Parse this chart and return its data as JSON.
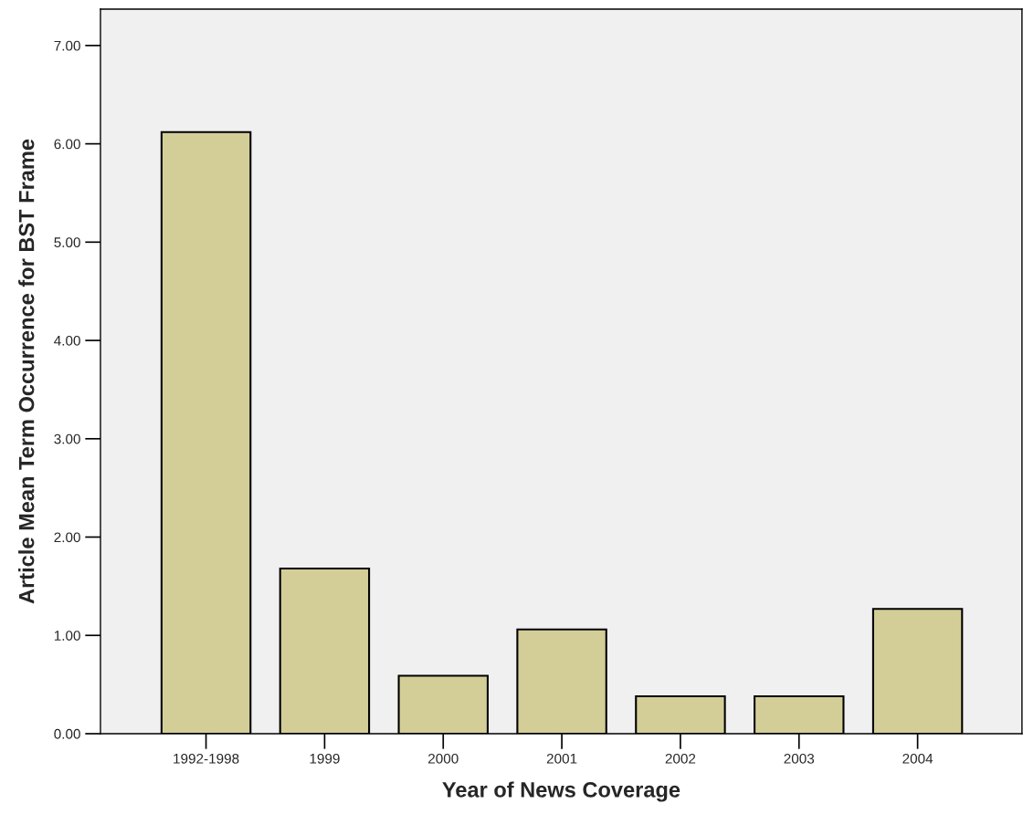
{
  "chart_data": {
    "type": "bar",
    "xlabel": "Year of News Coverage",
    "ylabel": "Article Mean Term Occurrence for BST Frame",
    "categories": [
      "1992-1998",
      "1999",
      "2000",
      "2001",
      "2002",
      "2003",
      "2004"
    ],
    "values": [
      6.12,
      1.68,
      0.59,
      1.06,
      0.38,
      0.38,
      1.27
    ],
    "color": "#d3ce97",
    "ylim": [
      0,
      7.37
    ],
    "yticks": [
      {
        "value": 0,
        "label": "0.00"
      },
      {
        "value": 1,
        "label": "1.00"
      },
      {
        "value": 2,
        "label": "2.00"
      },
      {
        "value": 3,
        "label": "3.00"
      },
      {
        "value": 4,
        "label": "4.00"
      },
      {
        "value": 5,
        "label": "5.00"
      },
      {
        "value": 6,
        "label": "6.00"
      },
      {
        "value": 7,
        "label": "7.00"
      }
    ],
    "grid": false
  }
}
